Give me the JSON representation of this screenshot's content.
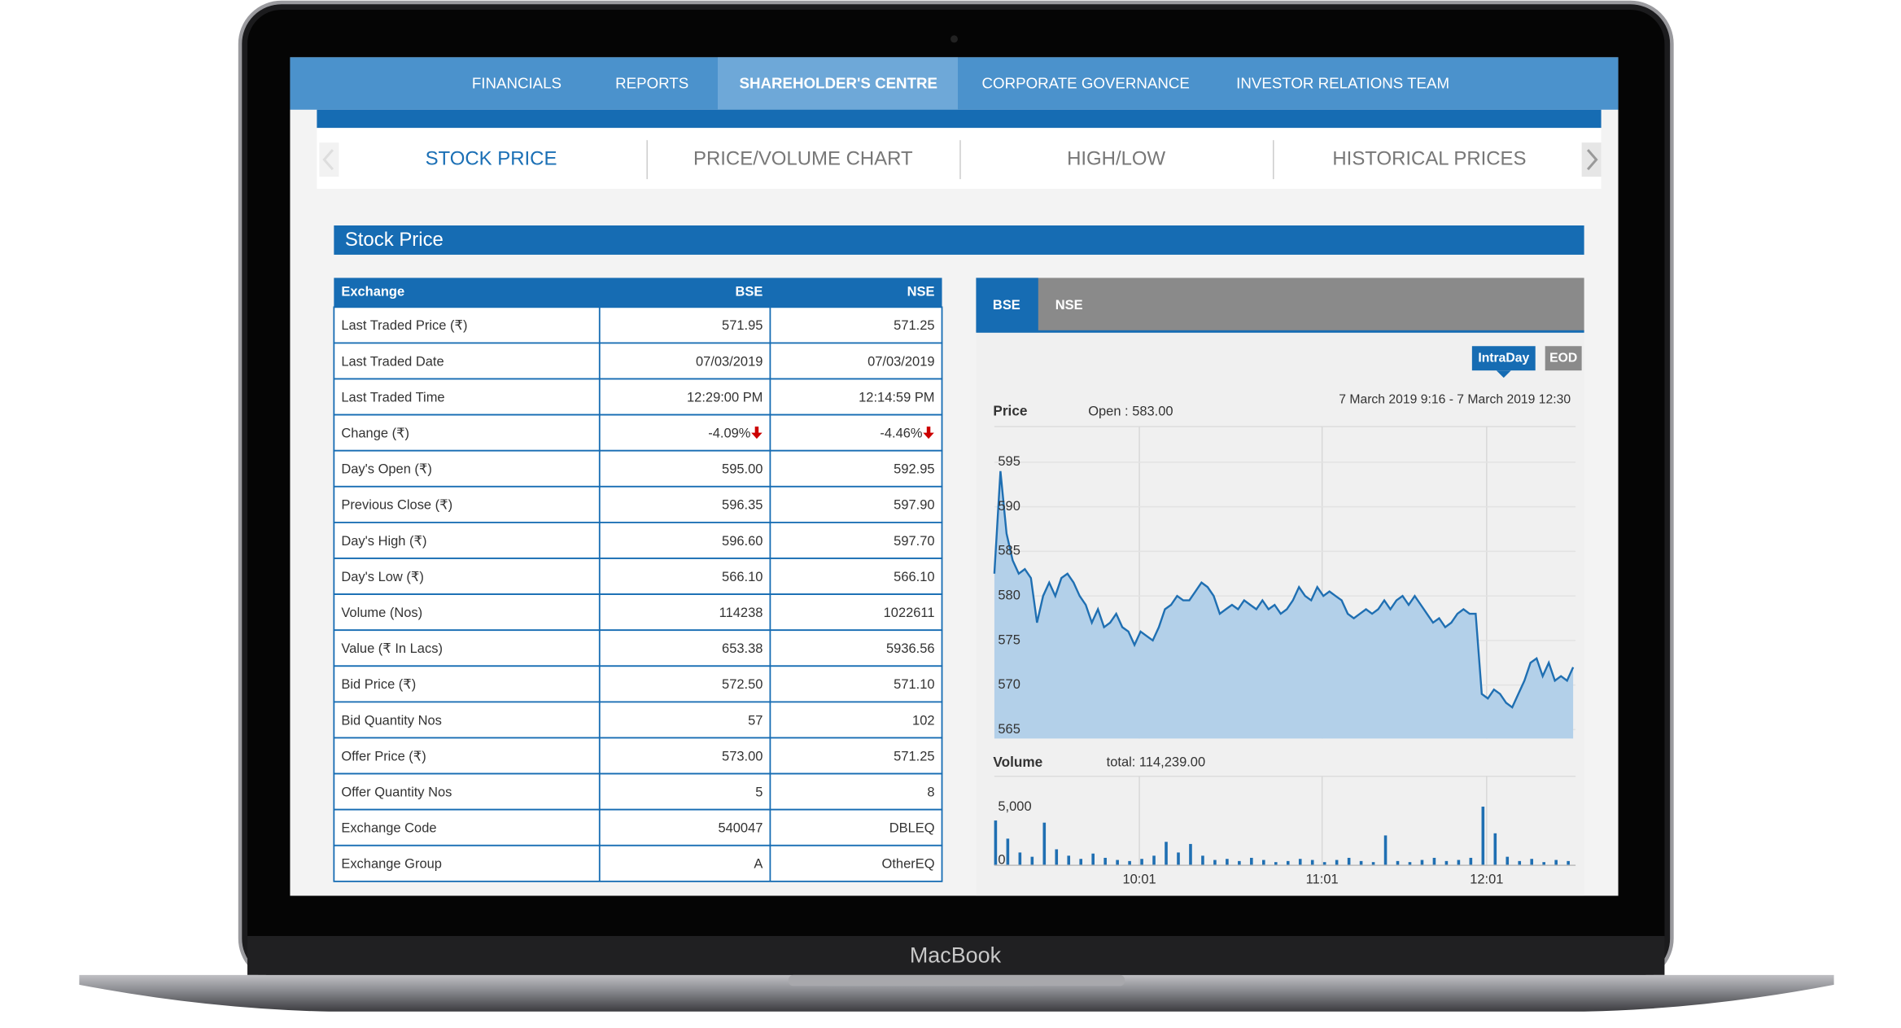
{
  "nav": [
    "FINANCIALS",
    "REPORTS",
    "SHAREHOLDER'S CENTRE",
    "CORPORATE GOVERNANCE",
    "INVESTOR RELATIONS TEAM"
  ],
  "tabs": [
    "STOCK PRICE",
    "PRICE/VOLUME CHART",
    "HIGH/LOW",
    "HISTORICAL PRICES"
  ],
  "section_title": "Stock Price",
  "table": {
    "header": [
      "Exchange",
      "BSE",
      "NSE"
    ],
    "rows": [
      [
        "Last Traded Price (₹)",
        "571.95",
        "571.25"
      ],
      [
        "Last Traded Date",
        "07/03/2019",
        "07/03/2019"
      ],
      [
        "Last Traded Time",
        "12:29:00 PM",
        "12:14:59 PM"
      ],
      [
        "Change (₹)",
        "-4.09%",
        "-4.46%"
      ],
      [
        "Day's Open (₹)",
        "595.00",
        "592.95"
      ],
      [
        "Previous Close (₹)",
        "596.35",
        "597.90"
      ],
      [
        "Day's High (₹)",
        "596.60",
        "597.70"
      ],
      [
        "Day's Low (₹)",
        "566.10",
        "566.10"
      ],
      [
        "Volume (Nos)",
        "114238",
        "1022611"
      ],
      [
        "Value (₹ In Lacs)",
        "653.38",
        "5936.56"
      ],
      [
        "Bid Price (₹)",
        "572.50",
        "571.10"
      ],
      [
        "Bid Quantity Nos",
        "57",
        "102"
      ],
      [
        "Offer Price (₹)",
        "573.00",
        "571.25"
      ],
      [
        "Offer Quantity Nos",
        "5",
        "8"
      ],
      [
        "Exchange Code",
        "540047",
        "DBLEQ"
      ],
      [
        "Exchange Group",
        "A",
        "OtherEQ"
      ]
    ]
  },
  "chart_panel": {
    "exchange_tabs": [
      "BSE",
      "NSE"
    ],
    "period_buttons": [
      "IntraDay",
      "EOD"
    ],
    "date_range": "7 March 2019 9:16 - 7 March 2019 12:30"
  },
  "chart_data": [
    {
      "type": "area",
      "title": "Price",
      "annotation": "Open : 583.00",
      "color": "#1f6fb2",
      "fill": "#b3d0e9",
      "values": [
        582.5,
        594,
        587,
        584,
        582.5,
        583,
        582,
        577,
        580,
        581.5,
        580,
        582,
        582.5,
        581.5,
        580,
        579,
        577,
        578.5,
        576.5,
        577,
        578,
        576.5,
        576,
        574.5,
        576,
        575.5,
        575,
        576.5,
        578.5,
        579,
        580,
        579.5,
        579.5,
        580.5,
        581.5,
        581,
        580,
        578,
        578.5,
        579,
        578.5,
        579.5,
        579,
        578.5,
        579.5,
        578.5,
        579,
        578,
        578.5,
        579.5,
        581,
        580,
        579.5,
        581,
        580,
        580.5,
        580,
        579.5,
        578,
        577.5,
        578,
        578.5,
        578,
        578.5,
        579.5,
        578.5,
        579.5,
        580,
        579,
        580,
        579,
        578,
        577,
        577.5,
        576.5,
        577,
        578,
        578.5,
        578,
        578,
        569,
        568.5,
        569.5,
        569,
        568,
        567.5,
        569,
        570.5,
        572.5,
        573,
        571,
        572.5,
        570.5,
        571,
        570.5,
        572
      ],
      "xlim": [
        0,
        95
      ],
      "xticks": [
        {
          "value": 23.8,
          "label": "10:01"
        },
        {
          "value": 53.8,
          "label": "11:01"
        },
        {
          "value": 80.8,
          "label": "12:01"
        }
      ],
      "ylim": [
        564,
        599
      ],
      "yticks": [
        565,
        570,
        575,
        580,
        585,
        590,
        595
      ],
      "grid": true
    },
    {
      "type": "bar",
      "title": "Volume",
      "annotation": "total: 114,239.00",
      "color": "#1f6fb2",
      "values": [
        4200,
        2500,
        1200,
        800,
        4000,
        1500,
        900,
        600,
        1100,
        700,
        500,
        400,
        600,
        900,
        2200,
        1200,
        2000,
        900,
        500,
        600,
        400,
        700,
        500,
        300,
        400,
        600,
        500,
        300,
        500,
        700,
        400,
        300,
        2800,
        400,
        300,
        500,
        700,
        400,
        500,
        700,
        5500,
        3000,
        800,
        400,
        600,
        300,
        500,
        400
      ],
      "ylim": [
        0,
        8000
      ],
      "yticks": [
        0,
        {
          "value": 5000,
          "label": "5,000"
        }
      ]
    }
  ],
  "device_label": "MacBook"
}
